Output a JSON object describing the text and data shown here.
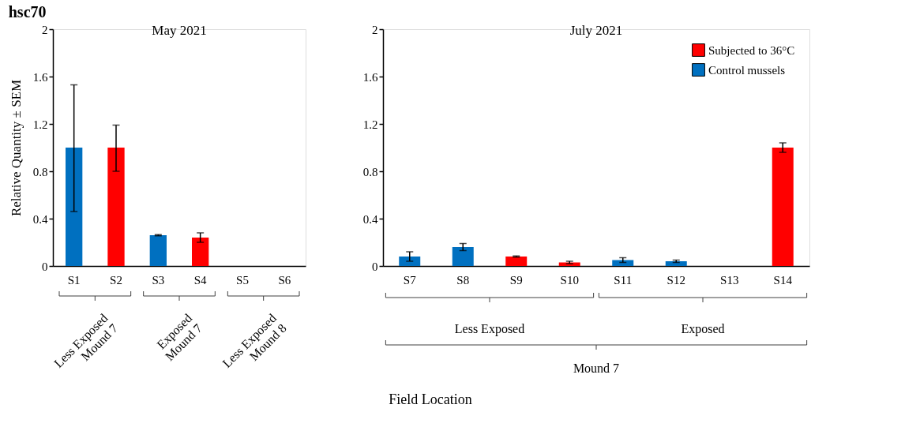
{
  "chart_data": [
    {
      "type": "bar",
      "title": "hsc70",
      "subtitle": "May 2021",
      "ylabel": "Relative Quantity ± SEM",
      "categories": [
        "S1",
        "S2",
        "S3",
        "S4",
        "S5",
        "S6"
      ],
      "series": [
        {
          "color": "#ff0000",
          "values": [
            null,
            1.0,
            null,
            0.24,
            null,
            null
          ],
          "errors": [
            null,
            [
              0.8,
              1.19
            ],
            null,
            [
              0.2,
              0.28
            ],
            null,
            null
          ]
        },
        {
          "color": "#0070c0",
          "values": [
            1.0,
            null,
            0.26,
            null,
            null,
            null
          ],
          "errors": [
            [
              0.46,
              1.53
            ],
            null,
            [
              0.255,
              0.265
            ],
            null,
            null,
            null
          ]
        }
      ],
      "ylim": [
        0,
        2
      ],
      "yticks": [
        0,
        0.4,
        0.8,
        1.2,
        1.6,
        2
      ],
      "grid": false,
      "annotations": [
        "Less Exposed\nMound 7",
        "Exposed\nMound 7",
        "Less Exposed\nMound 8"
      ]
    },
    {
      "type": "bar",
      "subtitle": "July 2021",
      "xlabel": "Field Location",
      "categories": [
        "S7",
        "S8",
        "S9",
        "S10",
        "S11",
        "S12",
        "S13",
        "S14"
      ],
      "series": [
        {
          "name": "Subjected to 36°C",
          "color": "#ff0000",
          "values": [
            null,
            null,
            0.08,
            0.03,
            null,
            null,
            null,
            1.0
          ],
          "errors": [
            null,
            null,
            [
              0.075,
              0.085
            ],
            [
              0.02,
              0.04
            ],
            null,
            null,
            null,
            [
              0.96,
              1.04
            ]
          ]
        },
        {
          "name": "Control mussels",
          "color": "#0070c0",
          "values": [
            0.08,
            0.16,
            null,
            null,
            0.05,
            0.04,
            null,
            null
          ],
          "errors": [
            [
              0.04,
              0.12
            ],
            [
              0.13,
              0.19
            ],
            null,
            null,
            [
              0.03,
              0.07
            ],
            [
              0.03,
              0.05
            ],
            null,
            null
          ]
        }
      ],
      "ylim": [
        0,
        2
      ],
      "yticks": [
        0,
        0.4,
        0.8,
        1.2,
        1.6,
        2
      ],
      "grid": false,
      "legend": "top right",
      "annotations": [
        "Less Exposed",
        "Exposed",
        "Mound 7"
      ]
    }
  ]
}
